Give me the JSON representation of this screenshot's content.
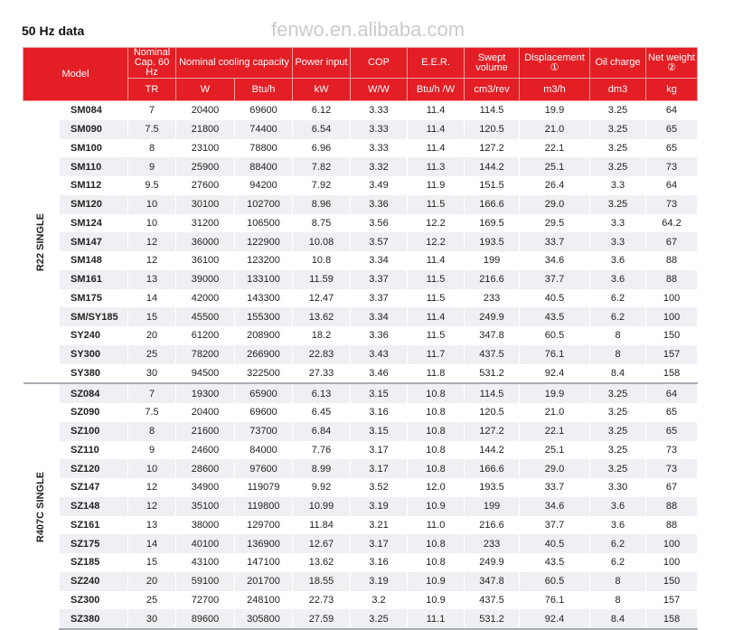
{
  "title": "50 Hz data",
  "watermark": "fenwo.en.alibaba.com",
  "header": {
    "model": "Model",
    "nominal_cap": "Nominal Cap. 60 Hz",
    "cooling": "Nominal cooling capacity",
    "power": "Power input",
    "cop": "COP",
    "eer": "E.E.R.",
    "swept": "Swept volume",
    "disp": "Displacement ①",
    "oil": "Oil charge",
    "weight": "Net weight ②",
    "units": [
      "TR",
      "W",
      "Btu/h",
      "kW",
      "W/W",
      "Btu/h /W",
      "cm3/rev",
      "m3/h",
      "dm3",
      "kg"
    ]
  },
  "groups": [
    {
      "label": "R22 SINGLE",
      "rows": [
        [
          "SM084",
          "7",
          "20400",
          "69600",
          "6.12",
          "3.33",
          "11.4",
          "114.5",
          "19.9",
          "3.25",
          "64"
        ],
        [
          "SM090",
          "7.5",
          "21800",
          "74400",
          "6.54",
          "3.33",
          "11.4",
          "120.5",
          "21.0",
          "3.25",
          "65"
        ],
        [
          "SM100",
          "8",
          "23100",
          "78800",
          "6.96",
          "3.33",
          "11.4",
          "127.2",
          "22.1",
          "3.25",
          "65"
        ],
        [
          "SM110",
          "9",
          "25900",
          "88400",
          "7.82",
          "3.32",
          "11.3",
          "144.2",
          "25.1",
          "3.25",
          "73"
        ],
        [
          "SM112",
          "9.5",
          "27600",
          "94200",
          "7.92",
          "3.49",
          "11.9",
          "151.5",
          "26.4",
          "3.3",
          "64"
        ],
        [
          "SM120",
          "10",
          "30100",
          "102700",
          "8.96",
          "3.36",
          "11.5",
          "166.6",
          "29.0",
          "3.25",
          "73"
        ],
        [
          "SM124",
          "10",
          "31200",
          "106500",
          "8.75",
          "3.56",
          "12.2",
          "169.5",
          "29.5",
          "3.3",
          "64.2"
        ],
        [
          "SM147",
          "12",
          "36000",
          "122900",
          "10.08",
          "3.57",
          "12.2",
          "193.5",
          "33.7",
          "3.3",
          "67"
        ],
        [
          "SM148",
          "12",
          "36100",
          "123200",
          "10.8",
          "3.34",
          "11.4",
          "199",
          "34.6",
          "3.6",
          "88"
        ],
        [
          "SM161",
          "13",
          "39000",
          "133100",
          "11.59",
          "3.37",
          "11.5",
          "216.6",
          "37.7",
          "3.6",
          "88"
        ],
        [
          "SM175",
          "14",
          "42000",
          "143300",
          "12.47",
          "3.37",
          "11.5",
          "233",
          "40.5",
          "6.2",
          "100"
        ],
        [
          "SM/SY185",
          "15",
          "45500",
          "155300",
          "13.62",
          "3.34",
          "11.4",
          "249.9",
          "43.5",
          "6.2",
          "100"
        ],
        [
          "SY240",
          "20",
          "61200",
          "208900",
          "18.2",
          "3.36",
          "11.5",
          "347.8",
          "60.5",
          "8",
          "150"
        ],
        [
          "SY300",
          "25",
          "78200",
          "266900",
          "22.83",
          "3.43",
          "11.7",
          "437.5",
          "76.1",
          "8",
          "157"
        ],
        [
          "SY380",
          "30",
          "94500",
          "322500",
          "27.33",
          "3.46",
          "11.8",
          "531.2",
          "92.4",
          "8.4",
          "158"
        ]
      ]
    },
    {
      "label": "R407C SINGLE",
      "rows": [
        [
          "SZ084",
          "7",
          "19300",
          "65900",
          "6.13",
          "3.15",
          "10.8",
          "114.5",
          "19.9",
          "3.25",
          "64"
        ],
        [
          "SZ090",
          "7.5",
          "20400",
          "69600",
          "6.45",
          "3.16",
          "10.8",
          "120.5",
          "21.0",
          "3.25",
          "65"
        ],
        [
          "SZ100",
          "8",
          "21600",
          "73700",
          "6.84",
          "3.15",
          "10.8",
          "127.2",
          "22.1",
          "3.25",
          "65"
        ],
        [
          "SZ110",
          "9",
          "24600",
          "84000",
          "7.76",
          "3.17",
          "10.8",
          "144.2",
          "25.1",
          "3.25",
          "73"
        ],
        [
          "SZ120",
          "10",
          "28600",
          "97600",
          "8.99",
          "3.17",
          "10.8",
          "166.6",
          "29.0",
          "3.25",
          "73"
        ],
        [
          "SZ147",
          "12",
          "34900",
          "119079",
          "9.92",
          "3.52",
          "12.0",
          "193.5",
          "33.7",
          "3.30",
          "67"
        ],
        [
          "SZ148",
          "12",
          "35100",
          "119800",
          "10.99",
          "3.19",
          "10.9",
          "199",
          "34.6",
          "3.6",
          "88"
        ],
        [
          "SZ161",
          "13",
          "38000",
          "129700",
          "11.84",
          "3.21",
          "11.0",
          "216.6",
          "37.7",
          "3.6",
          "88"
        ],
        [
          "SZ175",
          "14",
          "40100",
          "136900",
          "12.67",
          "3.17",
          "10.8",
          "233",
          "40.5",
          "6.2",
          "100"
        ],
        [
          "SZ185",
          "15",
          "43100",
          "147100",
          "13.62",
          "3.16",
          "10.8",
          "249.9",
          "43.5",
          "6.2",
          "100"
        ],
        [
          "SZ240",
          "20",
          "59100",
          "201700",
          "18.55",
          "3.19",
          "10.9",
          "347.8",
          "60.5",
          "8",
          "150"
        ],
        [
          "SZ300",
          "25",
          "72700",
          "248100",
          "22.73",
          "3.2",
          "10.9",
          "437.5",
          "76.1",
          "8",
          "157"
        ],
        [
          "SZ380",
          "30",
          "89600",
          "305800",
          "27.59",
          "3.25",
          "11.1",
          "531.2",
          "92.4",
          "8.4",
          "158"
        ]
      ]
    }
  ]
}
